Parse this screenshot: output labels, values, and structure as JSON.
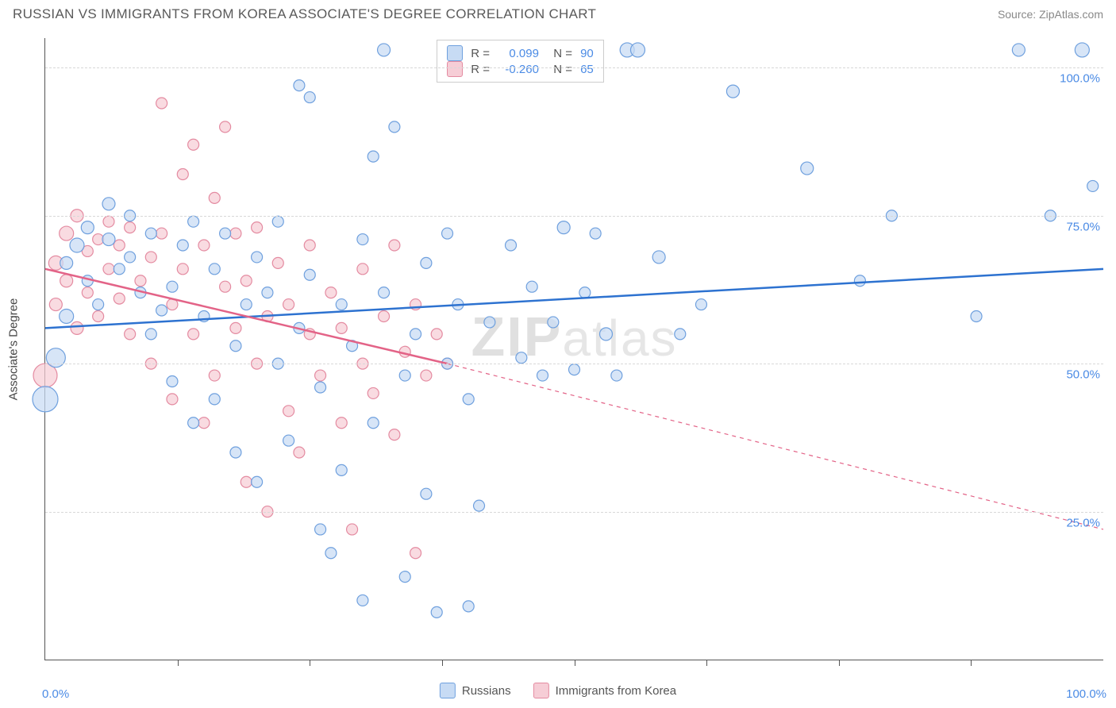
{
  "title": "RUSSIAN VS IMMIGRANTS FROM KOREA ASSOCIATE'S DEGREE CORRELATION CHART",
  "source": "Source: ZipAtlas.com",
  "watermark_a": "ZIP",
  "watermark_b": "atlas",
  "axis": {
    "ytitle": "Associate's Degree",
    "xmin_label": "0.0%",
    "xmax_label": "100.0%",
    "yticks": [
      {
        "v": 25,
        "label": "25.0%"
      },
      {
        "v": 50,
        "label": "50.0%"
      },
      {
        "v": 75,
        "label": "75.0%"
      },
      {
        "v": 100,
        "label": "100.0%"
      }
    ],
    "xticks_at": [
      12.5,
      25,
      37.5,
      50,
      62.5,
      75,
      87.5
    ],
    "ylim": [
      0,
      105
    ],
    "xlim": [
      0,
      100
    ],
    "grid_color": "#d8d8d8",
    "axis_color": "#555555",
    "tick_label_color": "#4b8be5",
    "axis_title_color": "#444444"
  },
  "series": {
    "russians": {
      "label": "Russians",
      "fill": "#c7dbf4",
      "stroke": "#6fa0de",
      "line_color": "#2d72d0",
      "line_width": 2.5,
      "opacity": 0.72,
      "trend": {
        "x1": 0,
        "y1": 56,
        "x2": 100,
        "y2": 66,
        "dash_after_x": 100
      },
      "points": [
        {
          "x": 0,
          "y": 44,
          "r": 16
        },
        {
          "x": 1,
          "y": 51,
          "r": 12
        },
        {
          "x": 2,
          "y": 58,
          "r": 9
        },
        {
          "x": 2,
          "y": 67,
          "r": 8
        },
        {
          "x": 3,
          "y": 70,
          "r": 9
        },
        {
          "x": 4,
          "y": 73,
          "r": 8
        },
        {
          "x": 4,
          "y": 64,
          "r": 7
        },
        {
          "x": 5,
          "y": 60,
          "r": 7
        },
        {
          "x": 6,
          "y": 77,
          "r": 8
        },
        {
          "x": 6,
          "y": 71,
          "r": 8
        },
        {
          "x": 7,
          "y": 66,
          "r": 7
        },
        {
          "x": 8,
          "y": 75,
          "r": 7
        },
        {
          "x": 8,
          "y": 68,
          "r": 7
        },
        {
          "x": 9,
          "y": 62,
          "r": 7
        },
        {
          "x": 10,
          "y": 72,
          "r": 7
        },
        {
          "x": 10,
          "y": 55,
          "r": 7
        },
        {
          "x": 11,
          "y": 59,
          "r": 7
        },
        {
          "x": 12,
          "y": 63,
          "r": 7
        },
        {
          "x": 12,
          "y": 47,
          "r": 7
        },
        {
          "x": 13,
          "y": 70,
          "r": 7
        },
        {
          "x": 14,
          "y": 74,
          "r": 7
        },
        {
          "x": 14,
          "y": 40,
          "r": 7
        },
        {
          "x": 15,
          "y": 58,
          "r": 7
        },
        {
          "x": 16,
          "y": 66,
          "r": 7
        },
        {
          "x": 16,
          "y": 44,
          "r": 7
        },
        {
          "x": 17,
          "y": 72,
          "r": 7
        },
        {
          "x": 18,
          "y": 53,
          "r": 7
        },
        {
          "x": 18,
          "y": 35,
          "r": 7
        },
        {
          "x": 19,
          "y": 60,
          "r": 7
        },
        {
          "x": 20,
          "y": 68,
          "r": 7
        },
        {
          "x": 20,
          "y": 30,
          "r": 7
        },
        {
          "x": 21,
          "y": 62,
          "r": 7
        },
        {
          "x": 22,
          "y": 74,
          "r": 7
        },
        {
          "x": 22,
          "y": 50,
          "r": 7
        },
        {
          "x": 23,
          "y": 37,
          "r": 7
        },
        {
          "x": 24,
          "y": 56,
          "r": 7
        },
        {
          "x": 24,
          "y": 97,
          "r": 7
        },
        {
          "x": 25,
          "y": 95,
          "r": 7
        },
        {
          "x": 25,
          "y": 65,
          "r": 7
        },
        {
          "x": 26,
          "y": 46,
          "r": 7
        },
        {
          "x": 26,
          "y": 22,
          "r": 7
        },
        {
          "x": 27,
          "y": 18,
          "r": 7
        },
        {
          "x": 28,
          "y": 60,
          "r": 7
        },
        {
          "x": 28,
          "y": 32,
          "r": 7
        },
        {
          "x": 29,
          "y": 53,
          "r": 7
        },
        {
          "x": 30,
          "y": 71,
          "r": 7
        },
        {
          "x": 30,
          "y": 10,
          "r": 7
        },
        {
          "x": 31,
          "y": 85,
          "r": 7
        },
        {
          "x": 31,
          "y": 40,
          "r": 7
        },
        {
          "x": 32,
          "y": 103,
          "r": 8
        },
        {
          "x": 32,
          "y": 62,
          "r": 7
        },
        {
          "x": 33,
          "y": 90,
          "r": 7
        },
        {
          "x": 34,
          "y": 14,
          "r": 7
        },
        {
          "x": 34,
          "y": 48,
          "r": 7
        },
        {
          "x": 35,
          "y": 55,
          "r": 7
        },
        {
          "x": 36,
          "y": 67,
          "r": 7
        },
        {
          "x": 36,
          "y": 28,
          "r": 7
        },
        {
          "x": 37,
          "y": 8,
          "r": 7
        },
        {
          "x": 38,
          "y": 50,
          "r": 7
        },
        {
          "x": 38,
          "y": 72,
          "r": 7
        },
        {
          "x": 39,
          "y": 60,
          "r": 7
        },
        {
          "x": 40,
          "y": 9,
          "r": 7
        },
        {
          "x": 40,
          "y": 44,
          "r": 7
        },
        {
          "x": 41,
          "y": 26,
          "r": 7
        },
        {
          "x": 42,
          "y": 57,
          "r": 7
        },
        {
          "x": 44,
          "y": 70,
          "r": 7
        },
        {
          "x": 45,
          "y": 51,
          "r": 7
        },
        {
          "x": 46,
          "y": 63,
          "r": 7
        },
        {
          "x": 47,
          "y": 48,
          "r": 7
        },
        {
          "x": 48,
          "y": 57,
          "r": 7
        },
        {
          "x": 49,
          "y": 73,
          "r": 8
        },
        {
          "x": 50,
          "y": 49,
          "r": 7
        },
        {
          "x": 51,
          "y": 62,
          "r": 7
        },
        {
          "x": 52,
          "y": 72,
          "r": 7
        },
        {
          "x": 53,
          "y": 55,
          "r": 8
        },
        {
          "x": 54,
          "y": 48,
          "r": 7
        },
        {
          "x": 55,
          "y": 103,
          "r": 9
        },
        {
          "x": 56,
          "y": 103,
          "r": 9
        },
        {
          "x": 58,
          "y": 68,
          "r": 8
        },
        {
          "x": 60,
          "y": 55,
          "r": 7
        },
        {
          "x": 62,
          "y": 60,
          "r": 7
        },
        {
          "x": 65,
          "y": 96,
          "r": 8
        },
        {
          "x": 72,
          "y": 83,
          "r": 8
        },
        {
          "x": 77,
          "y": 64,
          "r": 7
        },
        {
          "x": 80,
          "y": 75,
          "r": 7
        },
        {
          "x": 88,
          "y": 58,
          "r": 7
        },
        {
          "x": 92,
          "y": 103,
          "r": 8
        },
        {
          "x": 95,
          "y": 75,
          "r": 7
        },
        {
          "x": 98,
          "y": 103,
          "r": 9
        },
        {
          "x": 99,
          "y": 80,
          "r": 7
        }
      ]
    },
    "korea": {
      "label": "Immigrants from Korea",
      "fill": "#f6cdd6",
      "stroke": "#e48ba1",
      "line_color": "#e36387",
      "line_width": 2.5,
      "opacity": 0.72,
      "trend": {
        "x1": 0,
        "y1": 66,
        "x2": 38,
        "y2": 50,
        "dash_to_x": 100,
        "dash_to_y": 22
      },
      "points": [
        {
          "x": 0,
          "y": 48,
          "r": 15
        },
        {
          "x": 1,
          "y": 67,
          "r": 9
        },
        {
          "x": 1,
          "y": 60,
          "r": 8
        },
        {
          "x": 2,
          "y": 72,
          "r": 9
        },
        {
          "x": 2,
          "y": 64,
          "r": 8
        },
        {
          "x": 3,
          "y": 56,
          "r": 8
        },
        {
          "x": 3,
          "y": 75,
          "r": 8
        },
        {
          "x": 4,
          "y": 69,
          "r": 7
        },
        {
          "x": 4,
          "y": 62,
          "r": 7
        },
        {
          "x": 5,
          "y": 71,
          "r": 7
        },
        {
          "x": 5,
          "y": 58,
          "r": 7
        },
        {
          "x": 6,
          "y": 66,
          "r": 7
        },
        {
          "x": 6,
          "y": 74,
          "r": 7
        },
        {
          "x": 7,
          "y": 61,
          "r": 7
        },
        {
          "x": 7,
          "y": 70,
          "r": 7
        },
        {
          "x": 8,
          "y": 55,
          "r": 7
        },
        {
          "x": 8,
          "y": 73,
          "r": 7
        },
        {
          "x": 9,
          "y": 64,
          "r": 7
        },
        {
          "x": 10,
          "y": 68,
          "r": 7
        },
        {
          "x": 10,
          "y": 50,
          "r": 7
        },
        {
          "x": 11,
          "y": 72,
          "r": 7
        },
        {
          "x": 11,
          "y": 94,
          "r": 7
        },
        {
          "x": 12,
          "y": 60,
          "r": 7
        },
        {
          "x": 12,
          "y": 44,
          "r": 7
        },
        {
          "x": 13,
          "y": 82,
          "r": 7
        },
        {
          "x": 13,
          "y": 66,
          "r": 7
        },
        {
          "x": 14,
          "y": 87,
          "r": 7
        },
        {
          "x": 14,
          "y": 55,
          "r": 7
        },
        {
          "x": 15,
          "y": 70,
          "r": 7
        },
        {
          "x": 15,
          "y": 40,
          "r": 7
        },
        {
          "x": 16,
          "y": 78,
          "r": 7
        },
        {
          "x": 16,
          "y": 48,
          "r": 7
        },
        {
          "x": 17,
          "y": 63,
          "r": 7
        },
        {
          "x": 17,
          "y": 90,
          "r": 7
        },
        {
          "x": 18,
          "y": 56,
          "r": 7
        },
        {
          "x": 18,
          "y": 72,
          "r": 7
        },
        {
          "x": 19,
          "y": 30,
          "r": 7
        },
        {
          "x": 19,
          "y": 64,
          "r": 7
        },
        {
          "x": 20,
          "y": 73,
          "r": 7
        },
        {
          "x": 20,
          "y": 50,
          "r": 7
        },
        {
          "x": 21,
          "y": 58,
          "r": 7
        },
        {
          "x": 21,
          "y": 25,
          "r": 7
        },
        {
          "x": 22,
          "y": 67,
          "r": 7
        },
        {
          "x": 23,
          "y": 42,
          "r": 7
        },
        {
          "x": 23,
          "y": 60,
          "r": 7
        },
        {
          "x": 24,
          "y": 35,
          "r": 7
        },
        {
          "x": 25,
          "y": 55,
          "r": 7
        },
        {
          "x": 25,
          "y": 70,
          "r": 7
        },
        {
          "x": 26,
          "y": 48,
          "r": 7
        },
        {
          "x": 27,
          "y": 62,
          "r": 7
        },
        {
          "x": 28,
          "y": 40,
          "r": 7
        },
        {
          "x": 28,
          "y": 56,
          "r": 7
        },
        {
          "x": 29,
          "y": 22,
          "r": 7
        },
        {
          "x": 30,
          "y": 50,
          "r": 7
        },
        {
          "x": 30,
          "y": 66,
          "r": 7
        },
        {
          "x": 31,
          "y": 45,
          "r": 7
        },
        {
          "x": 32,
          "y": 58,
          "r": 7
        },
        {
          "x": 33,
          "y": 70,
          "r": 7
        },
        {
          "x": 33,
          "y": 38,
          "r": 7
        },
        {
          "x": 34,
          "y": 52,
          "r": 7
        },
        {
          "x": 35,
          "y": 60,
          "r": 7
        },
        {
          "x": 35,
          "y": 18,
          "r": 7
        },
        {
          "x": 36,
          "y": 48,
          "r": 7
        },
        {
          "x": 37,
          "y": 55,
          "r": 7
        },
        {
          "x": 38,
          "y": 50,
          "r": 7
        }
      ]
    }
  },
  "stats_legend": [
    {
      "swatch_fill": "#c7dbf4",
      "swatch_stroke": "#6fa0de",
      "r_label": "R =",
      "r_val": "0.099",
      "n_label": "N =",
      "n_val": "90"
    },
    {
      "swatch_fill": "#f6cdd6",
      "swatch_stroke": "#e48ba1",
      "r_label": "R =",
      "r_val": "-0.260",
      "n_label": "N =",
      "n_val": "65"
    }
  ],
  "bottom_legend": [
    {
      "swatch_fill": "#c7dbf4",
      "swatch_stroke": "#6fa0de",
      "label": "Russians"
    },
    {
      "swatch_fill": "#f6cdd6",
      "swatch_stroke": "#e48ba1",
      "label": "Immigrants from Korea"
    }
  ]
}
